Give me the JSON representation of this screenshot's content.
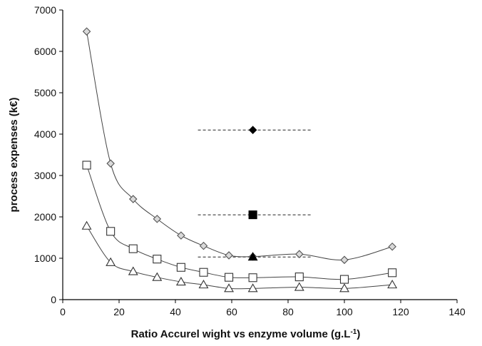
{
  "chart_data": {
    "type": "scatter",
    "title": "",
    "xlabel": "Ratio Accurel wight vs enzyme volume (g.L",
    "xlabel_superscript": "-1",
    "xlabel_suffix": ")",
    "ylabel": "process expenses (k€)",
    "xlim": [
      0,
      140
    ],
    "ylim": [
      0,
      7000
    ],
    "x_ticks": [
      0,
      20,
      40,
      60,
      80,
      100,
      120,
      140
    ],
    "y_ticks": [
      0,
      1000,
      2000,
      3000,
      4000,
      5000,
      6000,
      7000
    ],
    "grid": false,
    "legend": "none",
    "series": [
      {
        "marker": "diamond-open",
        "color": "#555555",
        "fill": "#d9d9d9",
        "x": [
          8.5,
          17,
          25,
          33.5,
          42,
          50,
          59,
          67.5,
          84,
          100,
          117
        ],
        "y": [
          6480,
          3290,
          2430,
          1950,
          1550,
          1300,
          1070,
          1040,
          1100,
          960,
          1280
        ]
      },
      {
        "marker": "square-open",
        "color": "#333333",
        "fill": "#ffffff",
        "x": [
          8.5,
          17,
          25,
          33.5,
          42,
          50,
          59,
          67.5,
          84,
          100,
          117
        ],
        "y": [
          3250,
          1650,
          1230,
          980,
          780,
          660,
          540,
          530,
          550,
          490,
          650
        ]
      },
      {
        "marker": "triangle-open",
        "color": "#333333",
        "fill": "#ffffff",
        "x": [
          8.5,
          17,
          25,
          33.5,
          42,
          50,
          59,
          67.5,
          84,
          100,
          117
        ],
        "y": [
          1780,
          900,
          680,
          540,
          430,
          360,
          270,
          270,
          300,
          270,
          360
        ]
      }
    ],
    "reference_points": [
      {
        "marker": "diamond-filled",
        "x": 67.5,
        "y": 4100,
        "x_range": [
          48,
          88
        ]
      },
      {
        "marker": "square-filled",
        "x": 67.5,
        "y": 2050,
        "x_range": [
          48,
          88
        ]
      },
      {
        "marker": "triangle-filled",
        "x": 67.5,
        "y": 1030,
        "x_range": [
          48,
          88
        ]
      }
    ]
  }
}
